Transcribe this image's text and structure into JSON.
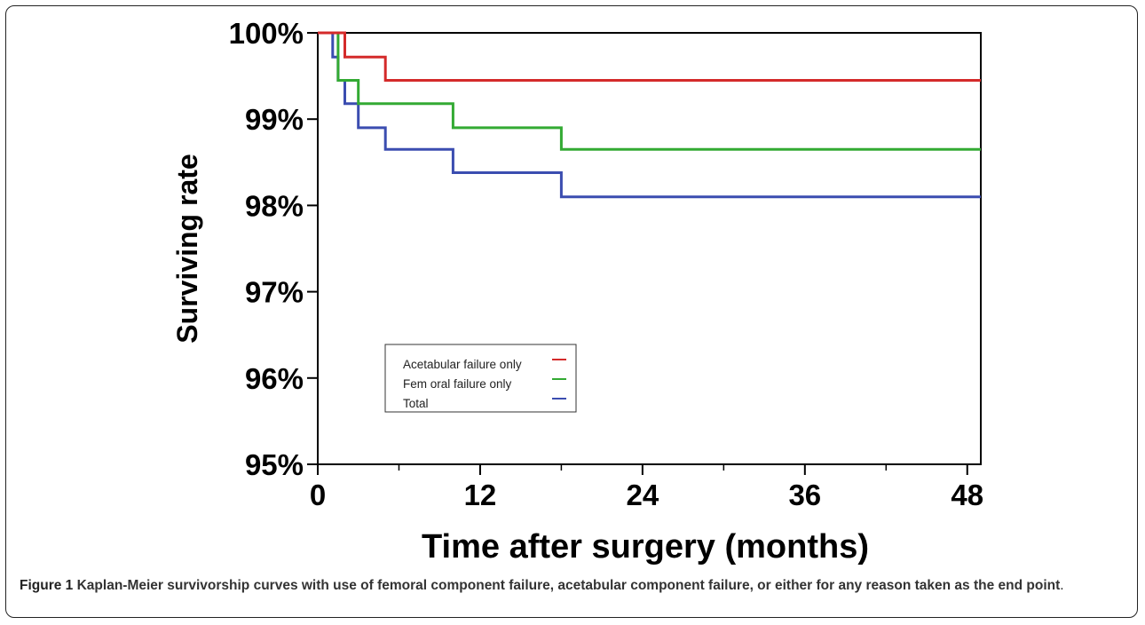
{
  "chart_data": {
    "type": "line",
    "title": "",
    "xlabel": "Time after surgery (months)",
    "ylabel": "Surviving rate",
    "xlim": [
      0,
      49
    ],
    "ylim": [
      95,
      100
    ],
    "x_ticks": [
      "0",
      "12",
      "24",
      "36",
      "48"
    ],
    "x_tick_values": [
      0,
      12,
      24,
      36,
      48
    ],
    "y_ticks": [
      "95%",
      "96%",
      "97%",
      "98%",
      "99%",
      "100%"
    ],
    "y_tick_values": [
      95,
      96,
      97,
      98,
      99,
      100
    ],
    "grid": false,
    "legend_position": "center-left",
    "series": [
      {
        "name": "Acetabular failure only",
        "color": "#d42a2a",
        "x": [
          0,
          2,
          2,
          5,
          5,
          49
        ],
        "y": [
          100,
          100,
          99.72,
          99.72,
          99.45,
          99.45
        ]
      },
      {
        "name": "Fem oral failure only",
        "color": "#33aa33",
        "x": [
          0,
          1.5,
          1.5,
          3,
          3,
          10,
          10,
          18,
          18,
          49
        ],
        "y": [
          100,
          100,
          99.45,
          99.45,
          99.18,
          99.18,
          98.9,
          98.9,
          98.65,
          98.65
        ]
      },
      {
        "name": "Total",
        "color": "#3b4db0",
        "x": [
          0,
          1.1,
          1.1,
          1.5,
          1.5,
          2,
          2,
          3,
          3,
          5,
          5,
          10,
          10,
          18,
          18,
          49
        ],
        "y": [
          100,
          100,
          99.72,
          99.72,
          99.45,
          99.45,
          99.18,
          99.18,
          98.9,
          98.9,
          98.65,
          98.65,
          98.38,
          98.38,
          98.1,
          98.1
        ]
      }
    ]
  },
  "caption": {
    "label": "Figure 1",
    "text": "Kaplan-Meier survivorship curves with use of femoral component failure, acetabular component failure, or either for any reason taken as the end point",
    "end": "."
  }
}
